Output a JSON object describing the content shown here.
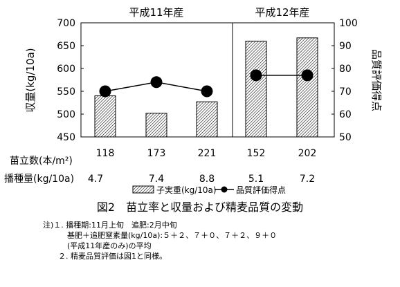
{
  "chart_data": {
    "type": "bar",
    "groups": [
      {
        "label": "平成11年産",
        "categories": [
          "118",
          "173",
          "221"
        ]
      },
      {
        "label": "平成12年産",
        "categories": [
          "152",
          "202"
        ]
      }
    ],
    "categories": [
      "118",
      "173",
      "221",
      "152",
      "202"
    ],
    "series": [
      {
        "name": "子実重(kg/10a)",
        "type": "bar",
        "axis": "left",
        "values": [
          540,
          502,
          527,
          660,
          667
        ]
      },
      {
        "name": "品質評価得点",
        "type": "line",
        "axis": "right",
        "values": [
          70,
          74,
          70,
          77,
          77
        ]
      }
    ],
    "yaxis_left": {
      "label": "収量(kg/10a)",
      "min": 450,
      "max": 700,
      "ticks": [
        450,
        500,
        550,
        600,
        650,
        700
      ]
    },
    "yaxis_right": {
      "label": "品質評価得点",
      "min": 50,
      "max": 100,
      "ticks": [
        50,
        60,
        70,
        80,
        90,
        100
      ]
    },
    "row_labels": [
      {
        "label": "苗立数(本/m²)",
        "values": [
          "118",
          "173",
          "221",
          "152",
          "202"
        ]
      },
      {
        "label": "播種量(kg/10a)",
        "values": [
          "4.7",
          "7.4",
          "8.8",
          "5.1",
          "7.2"
        ]
      }
    ],
    "legend": {
      "position": "bottom",
      "entries": [
        "子実重(kg/10a)",
        "品質評価得点"
      ]
    },
    "grid": false,
    "colors": {
      "bar_hatch": "#000000",
      "line": "#000000",
      "marker": "#000000"
    }
  },
  "caption": "図2　苗立率と収量および精麦品質の変動",
  "notes": [
    "注)１. 播種期:11月上旬　追肥:2月中旬",
    "基肥＋追肥窒素量(kg/10a):５＋２、７＋０、７＋２、９＋０",
    "(平成11年産のみ)の平均",
    "２. 精麦品質評価は図1と同様。"
  ]
}
